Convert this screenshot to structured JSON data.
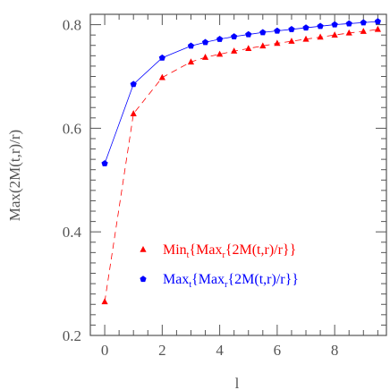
{
  "chart_data": {
    "type": "line",
    "xlabel": "l",
    "ylabel": "Max(2M(t,r)/r)",
    "xlim": [
      -0.5,
      9.8
    ],
    "ylim": [
      0.2,
      0.82
    ],
    "xticks": [
      0,
      2,
      4,
      6,
      8
    ],
    "yticks": [
      0.2,
      0.4,
      0.6,
      0.8
    ],
    "x_minor_step": 0.5,
    "grid": false,
    "legend_position": "bottom-right",
    "series": [
      {
        "legend_main1": "Min",
        "legend_sub1": "t",
        "legend_main2": "{Max",
        "legend_sub2": "r",
        "legend_main3": "{2M(t,r)/r}}",
        "color": "#ff0000",
        "marker": "triangle",
        "line_style": "dashed",
        "x": [
          0,
          1,
          2,
          3,
          3.5,
          4,
          4.5,
          5,
          5.5,
          6,
          6.5,
          7,
          7.5,
          8,
          8.5,
          9,
          9.5
        ],
        "values": [
          0.265,
          0.628,
          0.698,
          0.728,
          0.737,
          0.743,
          0.749,
          0.754,
          0.759,
          0.764,
          0.768,
          0.772,
          0.776,
          0.78,
          0.784,
          0.787,
          0.791
        ]
      },
      {
        "legend_main1": "Max",
        "legend_sub1": "t",
        "legend_main2": "{Max",
        "legend_sub2": "r",
        "legend_main3": "{2M(t,r)/r}}",
        "color": "#0000ff",
        "marker": "pentagon",
        "line_style": "solid",
        "x": [
          0,
          1,
          2,
          3,
          3.5,
          4,
          4.5,
          5,
          5.5,
          6,
          6.5,
          7,
          7.5,
          8,
          8.5,
          9,
          9.5
        ],
        "values": [
          0.532,
          0.685,
          0.736,
          0.759,
          0.766,
          0.772,
          0.777,
          0.781,
          0.785,
          0.788,
          0.791,
          0.794,
          0.797,
          0.8,
          0.802,
          0.804,
          0.806
        ]
      }
    ]
  }
}
